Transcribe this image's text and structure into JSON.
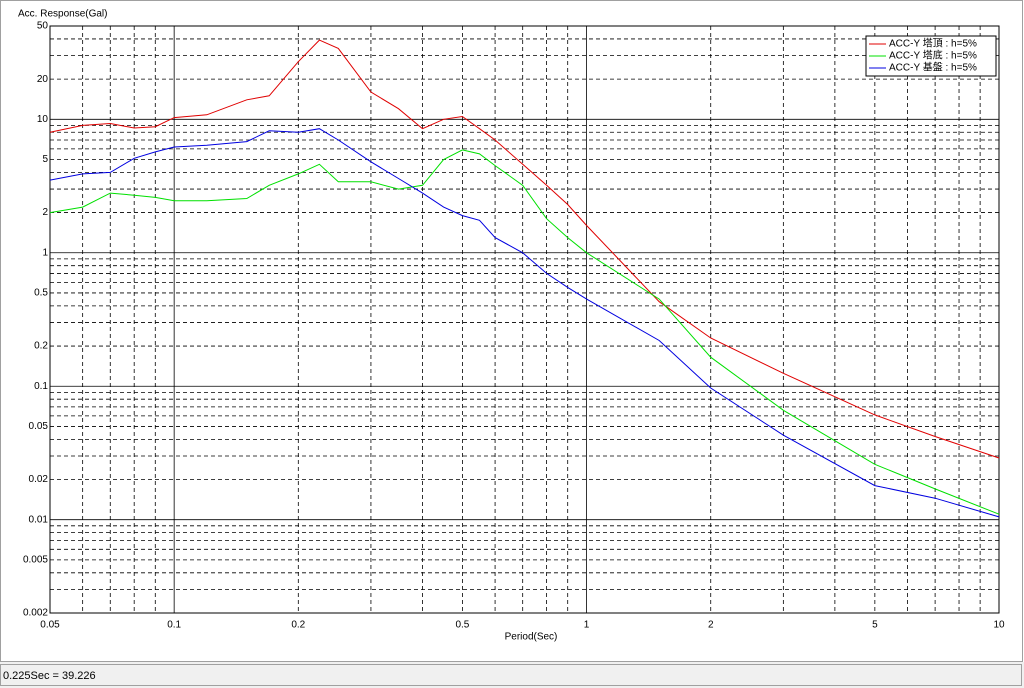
{
  "chart_data": {
    "type": "line",
    "y_label": "Acc. Response(Gal)",
    "x_label": "Period(Sec)",
    "x": [
      0.05,
      0.06,
      0.07,
      0.08,
      0.09,
      0.1,
      0.12,
      0.15,
      0.17,
      0.2,
      0.225,
      0.25,
      0.3,
      0.35,
      0.4,
      0.45,
      0.5,
      0.55,
      0.6,
      0.7,
      0.8,
      0.9,
      1,
      1.5,
      2,
      3,
      5,
      7,
      10
    ],
    "series": [
      {
        "name": "ACC-Y 塔頂 : h=5%",
        "color": "#e00000",
        "values": [
          8,
          9,
          9.3,
          8.6,
          8.8,
          10.3,
          10.8,
          14,
          15,
          27,
          39.2,
          34,
          16,
          12,
          8.5,
          10,
          10.5,
          8.5,
          7,
          4.6,
          3.2,
          2.3,
          1.6,
          0.43,
          0.23,
          0.125,
          0.061,
          0.042,
          0.029
        ]
      },
      {
        "name": "ACC-Y 塔底 : h=5%",
        "color": "#00e000",
        "values": [
          2,
          2.2,
          2.8,
          2.7,
          2.6,
          2.45,
          2.45,
          2.55,
          3.2,
          3.9,
          4.6,
          3.4,
          3.4,
          3.0,
          3.2,
          5,
          5.9,
          5.5,
          4.5,
          3.2,
          1.8,
          1.3,
          1.0,
          0.45,
          0.165,
          0.066,
          0.026,
          0.017,
          0.011
        ]
      },
      {
        "name": "ACC-Y 基盤 : h=5%",
        "color": "#0000e0",
        "values": [
          3.5,
          3.9,
          4,
          5.1,
          5.7,
          6.2,
          6.4,
          6.8,
          8.2,
          8.0,
          8.5,
          7,
          4.8,
          3.6,
          2.8,
          2.2,
          1.9,
          1.75,
          1.3,
          1.0,
          0.7,
          0.55,
          0.45,
          0.22,
          0.097,
          0.043,
          0.018,
          0.0145,
          0.0105
        ]
      }
    ],
    "xlim": [
      0.05,
      10
    ],
    "ylim": [
      0.002,
      50
    ],
    "x_log": true,
    "y_log": true,
    "xticks": [
      0.05,
      0.1,
      0.2,
      0.5,
      1,
      2,
      5,
      10
    ],
    "yticks": [
      0.002,
      0.005,
      0.01,
      0.02,
      0.05,
      0.1,
      0.2,
      0.5,
      1,
      2,
      5,
      10,
      20,
      50
    ],
    "minor_xticks": [
      0.06,
      0.07,
      0.08,
      0.09,
      0.3,
      0.4,
      0.6,
      0.7,
      0.8,
      0.9,
      3,
      4,
      6,
      7,
      8,
      9
    ],
    "minor_yticks": [
      0.003,
      0.004,
      0.006,
      0.007,
      0.008,
      0.009,
      0.03,
      0.04,
      0.06,
      0.07,
      0.08,
      0.09,
      0.3,
      0.4,
      0.6,
      0.7,
      0.8,
      0.9,
      3,
      4,
      6,
      7,
      8,
      9,
      30,
      40
    ],
    "grid": true,
    "legend": "top-right"
  },
  "status_bar": "0.225Sec = 39.226"
}
